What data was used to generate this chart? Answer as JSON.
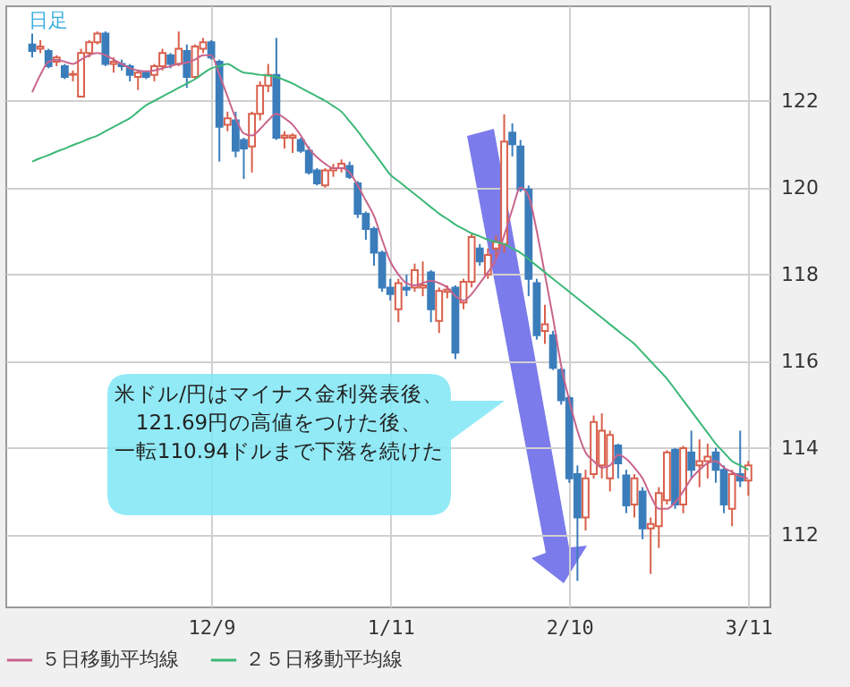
{
  "chart_data": {
    "type": "candlestick",
    "title": "日足",
    "annotations": [
      "米ドル/円はマイナス金利発表後、",
      "121.69円の高値をつけた後、",
      "一転110.94ドルまで下落を続けた"
    ],
    "categories": [
      null,
      null,
      null,
      null,
      null,
      null,
      null,
      null,
      null,
      null,
      null,
      null,
      null,
      null,
      null,
      null,
      null,
      null,
      null,
      null,
      null,
      null,
      "12/9",
      null,
      null,
      null,
      null,
      null,
      null,
      null,
      null,
      null,
      null,
      null,
      null,
      null,
      null,
      null,
      null,
      null,
      null,
      null,
      null,
      null,
      "1/11",
      null,
      null,
      null,
      null,
      null,
      null,
      null,
      null,
      null,
      null,
      null,
      null,
      null,
      null,
      null,
      null,
      null,
      null,
      null,
      null,
      null,
      "2/10",
      null,
      null,
      null,
      null,
      null,
      null,
      null,
      null,
      null,
      null,
      null,
      null,
      null,
      null,
      null,
      null,
      null,
      null,
      null,
      null,
      null,
      "3/11"
    ],
    "ohlc": [
      [
        123.3,
        123.55,
        123.0,
        123.15
      ],
      [
        123.2,
        123.4,
        123.1,
        123.25
      ],
      [
        123.15,
        123.2,
        122.75,
        122.8
      ],
      [
        122.9,
        123.05,
        122.8,
        123.0
      ],
      [
        122.8,
        122.85,
        122.5,
        122.55
      ],
      [
        122.6,
        122.7,
        122.45,
        122.62
      ],
      [
        122.1,
        123.2,
        122.1,
        123.1
      ],
      [
        123.1,
        123.4,
        123.0,
        123.35
      ],
      [
        123.35,
        123.6,
        123.3,
        123.55
      ],
      [
        123.55,
        123.6,
        122.8,
        122.85
      ],
      [
        122.85,
        123.0,
        122.65,
        122.9
      ],
      [
        122.85,
        122.95,
        122.7,
        122.8
      ],
      [
        122.8,
        122.85,
        122.45,
        122.6
      ],
      [
        122.55,
        122.7,
        122.25,
        122.65
      ],
      [
        122.65,
        122.7,
        122.5,
        122.55
      ],
      [
        122.6,
        122.85,
        122.45,
        122.8
      ],
      [
        122.8,
        123.2,
        122.7,
        123.1
      ],
      [
        123.05,
        123.1,
        122.75,
        122.85
      ],
      [
        122.85,
        123.6,
        122.8,
        123.2
      ],
      [
        123.15,
        123.3,
        122.3,
        122.55
      ],
      [
        122.55,
        123.3,
        122.5,
        123.25
      ],
      [
        123.2,
        123.45,
        123.1,
        123.35
      ],
      [
        123.35,
        123.4,
        122.95,
        123.0
      ],
      [
        122.9,
        122.95,
        120.6,
        121.4
      ],
      [
        121.45,
        121.75,
        121.3,
        121.6
      ],
      [
        121.55,
        121.75,
        120.7,
        120.85
      ],
      [
        121.1,
        121.15,
        120.2,
        120.9
      ],
      [
        120.95,
        121.75,
        120.35,
        121.7
      ],
      [
        121.7,
        122.45,
        121.55,
        122.35
      ],
      [
        122.35,
        122.85,
        122.2,
        122.6
      ],
      [
        122.6,
        123.45,
        121.1,
        121.15
      ],
      [
        121.15,
        121.3,
        120.9,
        121.2
      ],
      [
        121.15,
        121.25,
        120.8,
        121.2
      ],
      [
        121.1,
        121.15,
        120.8,
        120.85
      ],
      [
        120.85,
        120.95,
        120.3,
        120.35
      ],
      [
        120.4,
        120.45,
        120.05,
        120.1
      ],
      [
        120.05,
        120.45,
        120.0,
        120.4
      ],
      [
        120.4,
        120.55,
        120.25,
        120.45
      ],
      [
        120.45,
        120.65,
        120.35,
        120.55
      ],
      [
        120.5,
        120.6,
        120.2,
        120.25
      ],
      [
        120.1,
        120.15,
        119.3,
        119.4
      ],
      [
        119.4,
        119.45,
        118.8,
        119.05
      ],
      [
        119.05,
        119.1,
        118.2,
        118.5
      ],
      [
        118.5,
        118.55,
        117.6,
        117.7
      ],
      [
        117.7,
        117.9,
        117.4,
        117.55
      ],
      [
        117.2,
        117.9,
        116.9,
        117.8
      ],
      [
        117.7,
        118.0,
        117.5,
        117.65
      ],
      [
        117.7,
        118.25,
        117.6,
        118.1
      ],
      [
        117.7,
        118.3,
        117.5,
        117.75
      ],
      [
        118.05,
        118.1,
        116.9,
        117.2
      ],
      [
        116.93,
        117.7,
        116.65,
        117.62
      ],
      [
        117.6,
        117.75,
        117.45,
        117.65
      ],
      [
        117.7,
        117.75,
        116.05,
        116.2
      ],
      [
        117.35,
        117.9,
        117.2,
        117.83
      ],
      [
        117.83,
        118.93,
        117.7,
        118.86
      ],
      [
        118.6,
        118.7,
        118.2,
        118.3
      ],
      [
        118.0,
        118.6,
        117.9,
        118.45
      ],
      [
        118.6,
        118.9,
        118.4,
        118.75
      ],
      [
        118.7,
        121.69,
        118.5,
        121.06
      ],
      [
        121.27,
        121.48,
        120.72,
        121.0
      ],
      [
        120.95,
        121.1,
        119.9,
        119.96
      ],
      [
        119.96,
        120.05,
        117.5,
        117.9
      ],
      [
        117.8,
        117.9,
        116.5,
        116.6
      ],
      [
        116.7,
        117.3,
        116.4,
        116.85
      ],
      [
        116.6,
        116.7,
        115.8,
        115.85
      ],
      [
        115.8,
        115.85,
        115.0,
        115.1
      ],
      [
        115.15,
        115.2,
        113.2,
        113.3
      ],
      [
        113.4,
        113.6,
        110.94,
        112.4
      ],
      [
        112.4,
        113.5,
        112.1,
        113.3
      ],
      [
        113.4,
        114.75,
        113.3,
        114.6
      ],
      [
        113.6,
        114.8,
        113.3,
        114.4
      ],
      [
        113.3,
        114.4,
        113.0,
        114.3
      ],
      [
        114.06,
        114.1,
        113.3,
        113.65
      ],
      [
        113.37,
        113.5,
        112.5,
        112.68
      ],
      [
        112.7,
        113.4,
        112.4,
        113.3
      ],
      [
        113.0,
        113.1,
        111.9,
        112.15
      ],
      [
        112.15,
        112.4,
        111.1,
        112.25
      ],
      [
        112.2,
        113.1,
        111.7,
        112.96
      ],
      [
        112.8,
        113.95,
        112.7,
        113.9
      ],
      [
        113.96,
        114.0,
        112.6,
        112.7
      ],
      [
        112.7,
        114.05,
        112.5,
        114.0
      ],
      [
        113.9,
        114.4,
        113.3,
        113.5
      ],
      [
        113.6,
        114.2,
        113.1,
        113.7
      ],
      [
        113.7,
        114.1,
        113.3,
        113.8
      ],
      [
        113.9,
        114.0,
        113.2,
        113.5
      ],
      [
        113.5,
        113.6,
        112.5,
        112.7
      ],
      [
        112.6,
        113.5,
        112.2,
        113.4
      ],
      [
        113.4,
        114.4,
        113.1,
        113.25
      ],
      [
        113.25,
        113.7,
        112.9,
        113.6
      ]
    ],
    "colors": [
      "#3b7dbb",
      "#d9604c",
      "#3b7dbb",
      "#d9604c",
      "#3b7dbb",
      "#d9604c",
      "#d9604c",
      "#d9604c",
      "#d9604c",
      "#3b7dbb",
      "#d9604c",
      "#3b7dbb",
      "#3b7dbb",
      "#d9604c",
      "#3b7dbb",
      "#d9604c",
      "#d9604c",
      "#3b7dbb",
      "#d9604c",
      "#3b7dbb",
      "#d9604c",
      "#d9604c",
      "#3b7dbb",
      "#3b7dbb",
      "#d9604c",
      "#3b7dbb",
      "#3b7dbb",
      "#d9604c",
      "#d9604c",
      "#d9604c",
      "#3b7dbb",
      "#d9604c",
      "#d9604c",
      "#3b7dbb",
      "#3b7dbb",
      "#3b7dbb",
      "#d9604c",
      "#d9604c",
      "#d9604c",
      "#3b7dbb",
      "#3b7dbb",
      "#3b7dbb",
      "#3b7dbb",
      "#3b7dbb",
      "#3b7dbb",
      "#d9604c",
      "#3b7dbb",
      "#d9604c",
      "#d9604c",
      "#3b7dbb",
      "#d9604c",
      "#d9604c",
      "#3b7dbb",
      "#d9604c",
      "#d9604c",
      "#3b7dbb",
      "#d9604c",
      "#d9604c",
      "#d9604c",
      "#3b7dbb",
      "#3b7dbb",
      "#3b7dbb",
      "#3b7dbb",
      "#d9604c",
      "#3b7dbb",
      "#3b7dbb",
      "#3b7dbb",
      "#3b7dbb",
      "#d9604c",
      "#d9604c",
      "#d9604c",
      "#d9604c",
      "#3b7dbb",
      "#3b7dbb",
      "#d9604c",
      "#3b7dbb",
      "#d9604c",
      "#d9604c",
      "#d9604c",
      "#3b7dbb",
      "#d9604c",
      "#3b7dbb",
      "#d9604c",
      "#d9604c",
      "#3b7dbb",
      "#3b7dbb",
      "#d9604c",
      "#3b7dbb",
      "#d9604c"
    ],
    "series": [
      {
        "name": "５日移動平均線",
        "type": "line",
        "color": "#c8648c",
        "values": [
          122.2,
          122.6,
          122.9,
          122.95,
          122.9,
          122.85,
          122.95,
          123.05,
          123.1,
          123.05,
          122.95,
          122.85,
          122.75,
          122.7,
          122.68,
          122.7,
          122.75,
          122.8,
          122.85,
          122.88,
          122.95,
          123.05,
          123.05,
          122.6,
          122.1,
          121.6,
          121.25,
          121.2,
          121.35,
          121.55,
          121.7,
          121.6,
          121.45,
          121.2,
          120.9,
          120.7,
          120.55,
          120.45,
          120.45,
          120.35,
          120.05,
          119.7,
          119.35,
          118.8,
          118.3,
          118.0,
          117.8,
          117.75,
          117.8,
          117.85,
          117.8,
          117.7,
          117.5,
          117.4,
          117.55,
          117.8,
          118.05,
          118.35,
          118.9,
          119.5,
          120.0,
          119.8,
          119.0,
          118.0,
          117.0,
          115.9,
          115.1,
          114.4,
          113.9,
          113.7,
          113.55,
          113.6,
          113.85,
          113.75,
          113.55,
          113.3,
          112.9,
          112.6,
          112.6,
          112.75,
          113.0,
          113.3,
          113.5,
          113.65,
          113.7,
          113.55,
          113.45,
          113.35,
          113.3
        ]
      },
      {
        "name": "２５日移動平均線",
        "type": "line",
        "color": "#3cb878",
        "values": [
          120.6,
          120.68,
          120.75,
          120.83,
          120.9,
          120.98,
          121.05,
          121.13,
          121.2,
          121.3,
          121.4,
          121.5,
          121.6,
          121.75,
          121.9,
          122.0,
          122.1,
          122.2,
          122.3,
          122.4,
          122.5,
          122.63,
          122.75,
          122.8,
          122.85,
          122.75,
          122.65,
          122.63,
          122.6,
          122.58,
          122.55,
          122.48,
          122.4,
          122.3,
          122.2,
          122.1,
          122.0,
          121.88,
          121.75,
          121.53,
          121.3,
          121.05,
          120.8,
          120.55,
          120.3,
          120.15,
          120.0,
          119.85,
          119.7,
          119.55,
          119.4,
          119.28,
          119.15,
          119.05,
          118.95,
          118.88,
          118.8,
          118.75,
          118.7,
          118.6,
          118.5,
          118.35,
          118.2,
          118.05,
          117.9,
          117.75,
          117.6,
          117.45,
          117.3,
          117.15,
          117.0,
          116.85,
          116.7,
          116.55,
          116.4,
          116.2,
          116.0,
          115.8,
          115.6,
          115.35,
          115.1,
          114.85,
          114.6,
          114.35,
          114.1,
          113.9,
          113.7,
          113.6,
          113.5
        ]
      }
    ],
    "ylim": [
      110.35,
      124.2
    ],
    "yticks": [
      112,
      114,
      116,
      118,
      120,
      122
    ],
    "grid": true,
    "legend": "bottom left"
  }
}
